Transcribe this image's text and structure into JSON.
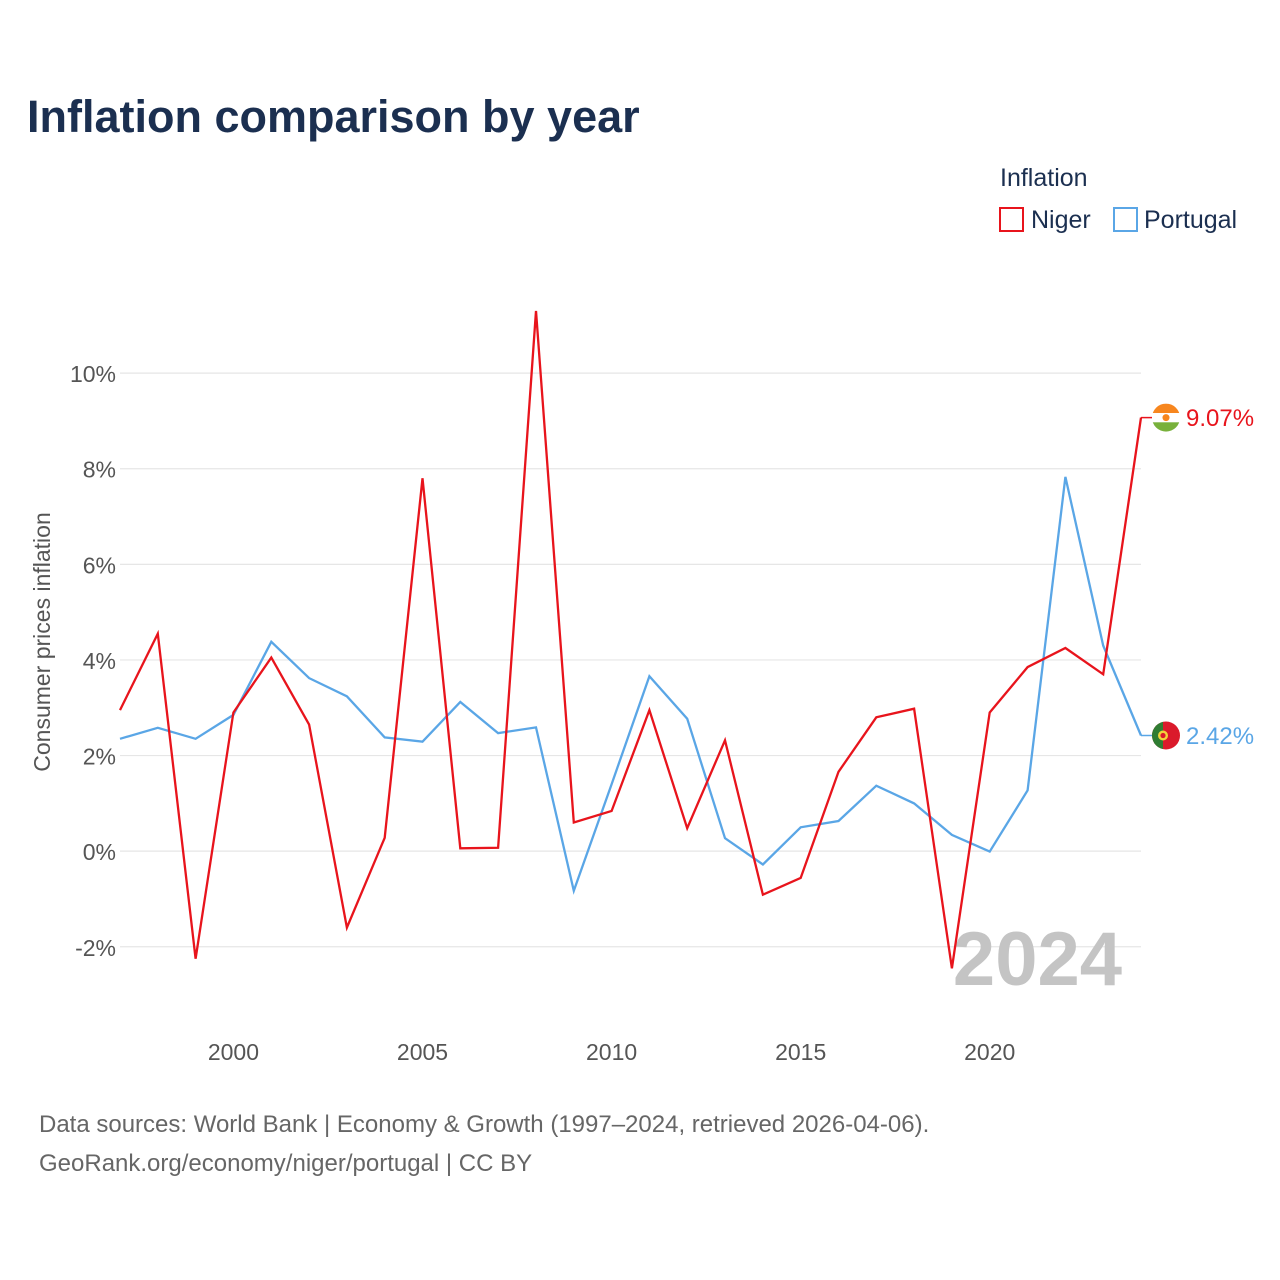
{
  "chart_data": {
    "type": "line",
    "title": "Inflation comparison by year",
    "legend_title": "Inflation",
    "legend_position": "top-right",
    "ylabel": "Consumer prices inflation",
    "xlabel": "",
    "x": [
      1997,
      1998,
      1999,
      2000,
      2001,
      2002,
      2003,
      2004,
      2005,
      2006,
      2007,
      2008,
      2009,
      2010,
      2011,
      2012,
      2013,
      2014,
      2015,
      2016,
      2017,
      2018,
      2019,
      2020,
      2021,
      2022,
      2023,
      2024
    ],
    "xlim": [
      1997,
      2024
    ],
    "ylim": [
      -2.8,
      11.3
    ],
    "x_ticks": [
      2000,
      2005,
      2010,
      2015,
      2020
    ],
    "x_tick_labels": [
      "2000",
      "2005",
      "2010",
      "2015",
      "2020"
    ],
    "y_ticks": [
      -2,
      0,
      2,
      4,
      6,
      8,
      10
    ],
    "y_tick_labels": [
      "-2%",
      "0%",
      "2%",
      "4%",
      "6%",
      "8%",
      "10%"
    ],
    "grid": true,
    "series": [
      {
        "name": "Niger",
        "color": "#e8141c",
        "values": [
          2.95,
          4.55,
          -2.25,
          2.9,
          4.05,
          2.65,
          -1.6,
          0.28,
          7.8,
          0.06,
          0.07,
          11.3,
          0.6,
          0.84,
          2.95,
          0.48,
          2.32,
          -0.91,
          -0.56,
          1.66,
          2.8,
          2.98,
          -2.45,
          2.9,
          3.85,
          4.25,
          3.7,
          9.07
        ],
        "end_label": "9.07%",
        "flag_icon": "niger-flag-icon"
      },
      {
        "name": "Portugal",
        "color": "#5aa6e6",
        "values": [
          2.35,
          2.58,
          2.35,
          2.85,
          4.38,
          3.62,
          3.24,
          2.38,
          2.29,
          3.12,
          2.47,
          2.59,
          -0.83,
          1.4,
          3.66,
          2.77,
          0.27,
          -0.28,
          0.5,
          0.63,
          1.37,
          1.0,
          0.34,
          -0.01,
          1.27,
          7.83,
          4.3,
          2.42
        ],
        "end_label": "2.42%",
        "flag_icon": "portugal-flag-icon"
      }
    ],
    "year_watermark": "2024",
    "source_line1": "Data sources: World Bank | Economy & Growth (1997–2024, retrieved 2026-04-06).",
    "source_line2": "GeoRank.org/economy/niger/portugal | CC BY",
    "colors": {
      "title": "#1b2f50",
      "grid": "#e6e6e6",
      "tick": "#555555",
      "watermark": "#c4c4c4"
    }
  }
}
